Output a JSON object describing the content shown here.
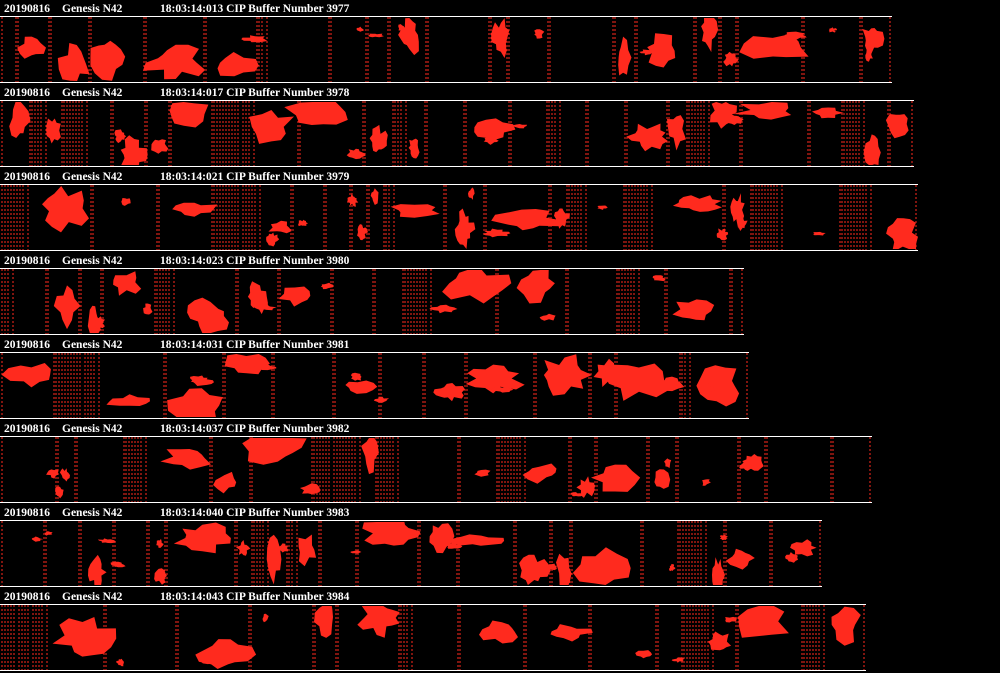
{
  "colors": {
    "background": "#000000",
    "text": "#ffffff",
    "particle": "#ff2a1e"
  },
  "strips": [
    {
      "date": "20190816",
      "probe": "Genesis N42",
      "time": "18:03:14:013",
      "buffer_label": "CIP Buffer Number 3977"
    },
    {
      "date": "20190816",
      "probe": "Genesis N42",
      "time": "18:03:14:017",
      "buffer_label": "CIP Buffer Number 3978"
    },
    {
      "date": "20190816",
      "probe": "Genesis N42",
      "time": "18:03:14:021",
      "buffer_label": "CIP Buffer Number 3979"
    },
    {
      "date": "20190816",
      "probe": "Genesis N42",
      "time": "18:03:14:023",
      "buffer_label": "CIP Buffer Number 3980"
    },
    {
      "date": "20190816",
      "probe": "Genesis N42",
      "time": "18:03:14:031",
      "buffer_label": "CIP Buffer Number 3981"
    },
    {
      "date": "20190816",
      "probe": "Genesis N42",
      "time": "18:03:14:037",
      "buffer_label": "CIP Buffer Number 3982"
    },
    {
      "date": "20190816",
      "probe": "Genesis N42",
      "time": "18:03:14:040",
      "buffer_label": "CIP Buffer Number 3983"
    },
    {
      "date": "20190816",
      "probe": "Genesis N42",
      "time": "18:03:14:043",
      "buffer_label": "CIP Buffer Number 3984"
    }
  ]
}
